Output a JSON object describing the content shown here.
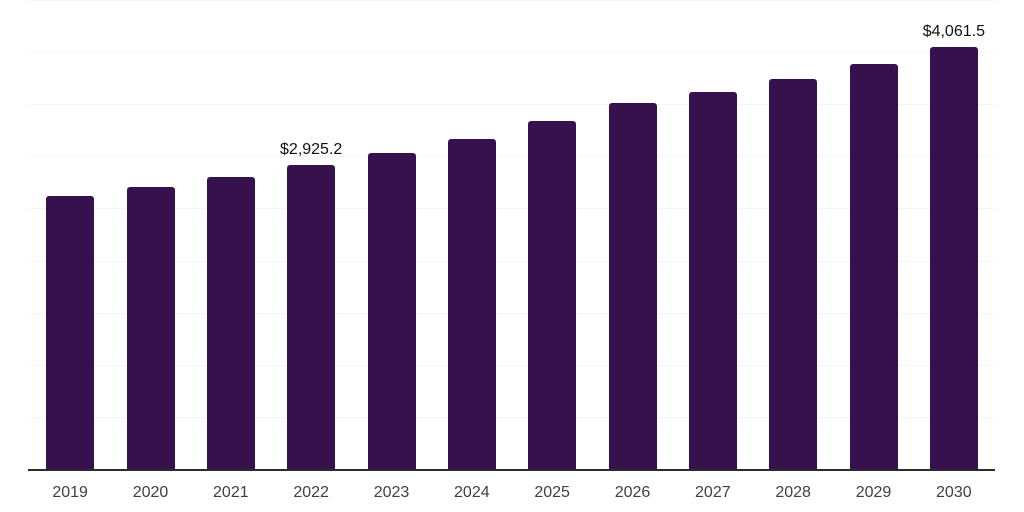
{
  "chart_data": {
    "type": "bar",
    "title": "",
    "xlabel": "",
    "ylabel": "",
    "categories": [
      "2019",
      "2020",
      "2021",
      "2022",
      "2023",
      "2024",
      "2025",
      "2026",
      "2027",
      "2028",
      "2029",
      "2030"
    ],
    "values": [
      2625,
      2720,
      2810,
      2925.2,
      3040,
      3175,
      3350,
      3520,
      3630,
      3755,
      3900,
      4061.5
    ],
    "data_labels": [
      {
        "category": "2022",
        "text": "$2,925.2"
      },
      {
        "category": "2030",
        "text": "$4,061.5"
      }
    ],
    "ylim": [
      0,
      4500
    ],
    "gridline_step": 500,
    "grid": true,
    "legend": false,
    "y_tick_labels_shown": false,
    "colors": {
      "bar": "#36114E",
      "gridline": "#f4f4f4",
      "axis_line": "#2b2b2b",
      "value_label": "#111111",
      "tick_label": "#404040",
      "background": "#ffffff"
    }
  }
}
